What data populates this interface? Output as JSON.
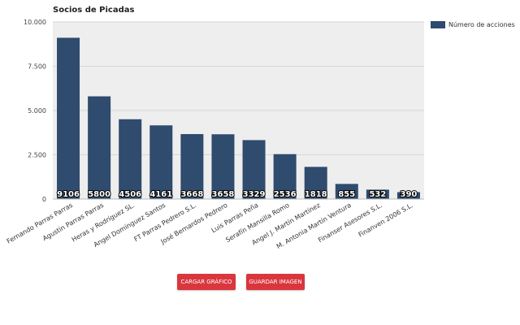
{
  "chart_data": {
    "type": "bar",
    "title": "Socios de Picadas",
    "categories": [
      "Fernando Parras Parras",
      "Agustín Parras Parras",
      "Heras y Rodríguez SL.",
      "Angel Domínguez Santos",
      "FT Parras Pedrero S.L.",
      "José Bernardos Pedrero",
      "Luis Parras Peña",
      "Serafín Mansilla Romo",
      "Angel J. Martín Martínez",
      "M. Antonia Martín Ventura",
      "Finanser Asesores S.L.",
      "Finanven 2006 S.L."
    ],
    "series": [
      {
        "name": "Número de acciones",
        "values": [
          9106,
          5800,
          4506,
          4161,
          3668,
          3658,
          3329,
          2536,
          1818,
          855,
          532,
          390
        ],
        "color": "#2f4b6e"
      }
    ],
    "data_labels": [
      "9106",
      "5800",
      "4506",
      "4161",
      "3668",
      "3658",
      "3329",
      "2536",
      "1818",
      "855",
      "532",
      "390"
    ],
    "ylim": [
      0,
      10000
    ],
    "yticks": [
      0,
      2500,
      5000,
      7500,
      10000
    ],
    "ytick_labels": [
      "0",
      "2.500",
      "5.000",
      "7.500",
      "10.000"
    ],
    "grid": true,
    "legend": "top-right"
  },
  "buttons": {
    "load": "CARGAR GRÁFICO",
    "save": "GUARDAR IMAGEN"
  }
}
